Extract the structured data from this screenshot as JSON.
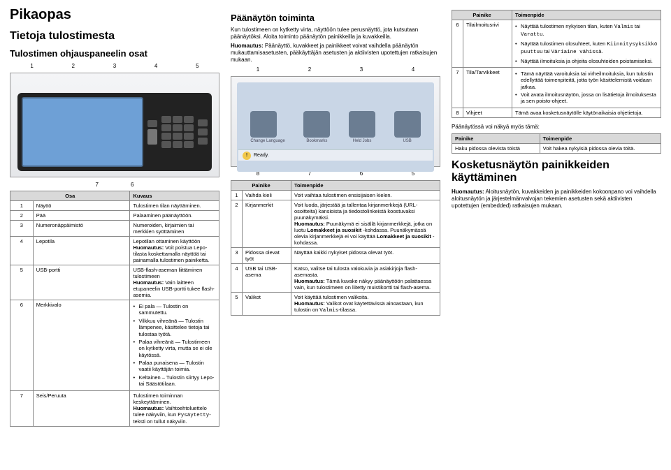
{
  "col1": {
    "title": "Pikaopas",
    "h2": "Tietoja tulostimesta",
    "h3": "Tulostimen ohjauspaneelin osat",
    "labels_top": [
      "1",
      "2",
      "3",
      "4",
      "5"
    ],
    "labels_bottom": [
      "7",
      "6"
    ],
    "table_head": [
      "Osa",
      "Kuvaus"
    ],
    "rows": [
      [
        "1",
        "Näyttö",
        "Tulostimen tilan näyttäminen."
      ],
      [
        "2",
        "Pää",
        "Palaaminen päänäyttöön."
      ],
      [
        "3",
        "Numeronäppäimistö",
        "Numeroiden, kirjaimien tai merkkien syöttäminen"
      ],
      [
        "4",
        "Lepotila",
        "Lepotilan ottaminen käyttöön\n<strong>Huomautus:</strong> Voit poistua Lepo-tilasta koskettamalla näyttöä tai painamalla tulostimen painiketta."
      ],
      [
        "5",
        "USB-portti",
        "USB-flash-aseman liittäminen tulostimeen\n<strong>Huomautus:</strong> Vain laitteen etupaneelin USB-portti tukee flash-asemia."
      ],
      [
        "6",
        "Merkkivalo",
        "<ul><li>Ei pala — Tulostin on sammutettu.</li><li>Vilkkuu vihreänä — Tulostin lämpenee, käsittelee tietoja tai tulostaa työtä.</li><li>Palaa vihreänä — Tulostimeen on kytketty virta, mutta se ei ole käytössä.</li><li>Palaa punaisena — Tulostin vaatii käyttäjän toimia.</li><li>Keltainen – Tulostin siirtyy Lepo- tai Säästötilaan.</li></ul>"
      ],
      [
        "7",
        "Seis/Peruuta",
        "Tulostimen toiminnan keskeyttäminen.\n<strong>Huomautus:</strong> Vaihtoehtoluettelo tulee näkyviin, kun <span class=\"mono\">Pysäytetty</span>-teksti on tullut näkyviin."
      ]
    ]
  },
  "col2": {
    "h3": "Päänäytön toiminta",
    "p1": "Kun tulostimeen on kytketty virta, näyttöön tulee perusnäyttö, jota kutsutaan päänäytöksi. Aloita toiminto päänäytön painikkeilla ja kuvakkeilla.",
    "p2": "<strong>Huomautus:</strong> Päänäyttö, kuvakkeet ja painikkeet voivat vaihdella päänäytön mukauttamisasetusten, pääkäyttäjän asetusten ja aktiivisten upotettujen ratkaisujen mukaan.",
    "labels_top": [
      "1",
      "2",
      "3",
      "4"
    ],
    "icons": [
      "Change Language",
      "Bookmarks",
      "Held Jobs",
      "USB"
    ],
    "ready": "Ready.",
    "labels_bottom": [
      "8",
      "7",
      "6",
      "5"
    ],
    "table_head": [
      "Painike",
      "Toimenpide"
    ],
    "rows": [
      [
        "1",
        "Vaihda kieli",
        "Voit vaihtaa tulostimen ensisijaisen kielen."
      ],
      [
        "2",
        "Kirjanmerkit",
        "Voit luoda, järjestää ja tallentaa kirjanmerkkejä (URL-osoitteita) kansioista ja tiedostolinkeistä koostuvaksi puunäkymäksi.\n<strong>Huomautus:</strong> Puunäkymä ei sisällä kirjanmerkkejä, jotka on luotu <strong>Lomakkeet ja suosikit</strong> -kohdassa. Puunäkymässä olevia kirjanmerkkejä ei voi käyttää <strong>Lomakkeet ja suosikit</strong> -kohdassa."
      ],
      [
        "3",
        "Pidossa olevat työt",
        "Näyttää kaikki nykyiset pidossa olevat työt."
      ],
      [
        "4",
        "USB tai USB-asema",
        "Katso, valitse tai tulosta valokuvia ja asiakirjoja flash-asemasta.\n<strong>Huomautus:</strong> Tämä kuvake näkyy päänäyttöön palattaessa vain, kun tulostimeen on liitetty muistikortti tai flash-asema."
      ],
      [
        "5",
        "Valikot",
        "Voit käyttää tulostimen valikoita.\n<strong>Huomautus:</strong> Valikot ovat käytettävissä ainoastaan, kun tulostin on <span class=\"mono\">Valmis</span>-tilassa."
      ]
    ]
  },
  "col3": {
    "table_head": [
      "Painike",
      "Toimenpide"
    ],
    "rows": [
      [
        "6",
        "Tilailmoitusrivi",
        "<ul><li>Näyttää tulostimen nykyisen tilan, kuten <span class=\"mono\">Valmis</span> tai <span class=\"mono\">Varattu</span>.</li><li>Näyttää tulostimen olosuhteet, kuten <span class=\"mono\">Kiinnitysyksikkö puuttuu</span> tai <span class=\"mono\">Väriaine vähissä</span>.</li><li>Näyttää ilmoituksia ja ohjeita olosuhteiden poistamiseksi.</li></ul>"
      ],
      [
        "7",
        "Tila/Tarvikkeet",
        "<ul><li>Tämä näyttää varoituksia tai virheilmoituksia, kun tulostin edellyttää toimenpiteitä, jotta työn käsittelemistä voidaan jatkaa.</li><li>Voit avata ilmoitusnäytön, jossa on lisätietoja ilmoituksesta ja sen poisto-ohjeet.</li></ul>"
      ],
      [
        "8",
        "Vihjeet",
        "Tämä avaa kosketusnäytölle käytönaikaisia ohjetietoja."
      ]
    ],
    "p_after": "Päänäytössä voi näkyä myös tämä:",
    "table2_head": [
      "Painike",
      "Toimenpide"
    ],
    "table2_rows": [
      [
        "Haku pidossa olevista töistä",
        "Voit hakea nykyisiä pidossa olevia töitä."
      ]
    ],
    "h3": "Kosketusnäytön painikkeiden käyttäminen",
    "p_last": "<strong>Huomautus:</strong> Aloitusnäytön, kuvakkeiden ja painikkeiden kokoonpano voi vaihdella aloitusnäytön ja järjestelmänvalvojan tekemien asetusten sekä aktiivisten upotettujen (embedded) ratkaisujen mukaan."
  }
}
